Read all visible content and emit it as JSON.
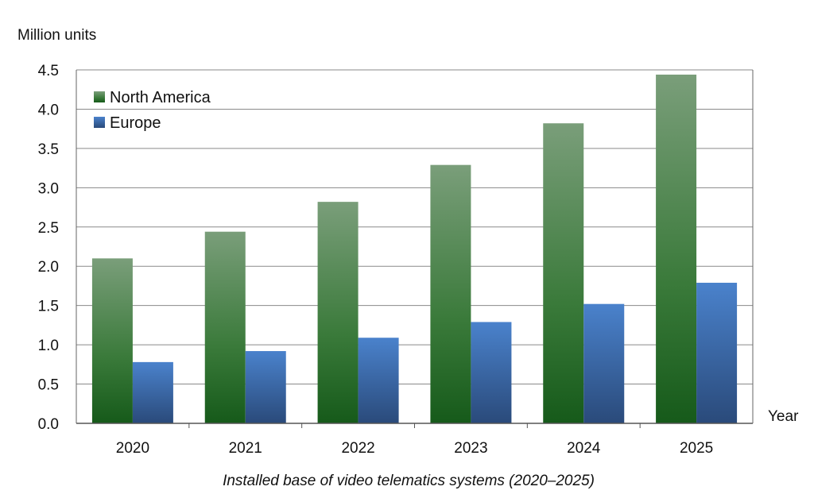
{
  "chart_data": {
    "type": "bar",
    "categories": [
      "2020",
      "2021",
      "2022",
      "2023",
      "2024",
      "2025"
    ],
    "series": [
      {
        "name": "North America",
        "values": [
          2.1,
          2.44,
          2.82,
          3.29,
          3.82,
          4.44
        ],
        "color": "#2f6b2f"
      },
      {
        "name": "Europe",
        "values": [
          0.78,
          0.92,
          1.09,
          1.29,
          1.52,
          1.79
        ],
        "color": "#3a6db0"
      }
    ],
    "y_ticks": [
      "0.0",
      "0.5",
      "1.0",
      "1.5",
      "2.0",
      "2.5",
      "3.0",
      "3.5",
      "4.0",
      "4.5"
    ],
    "ylim": [
      0,
      4.5
    ],
    "ylabel": "Million units",
    "xlabel": "Year",
    "caption": "Installed base of video telematics systems (2020–2025)",
    "grid": true,
    "legend_position": "top-left"
  }
}
